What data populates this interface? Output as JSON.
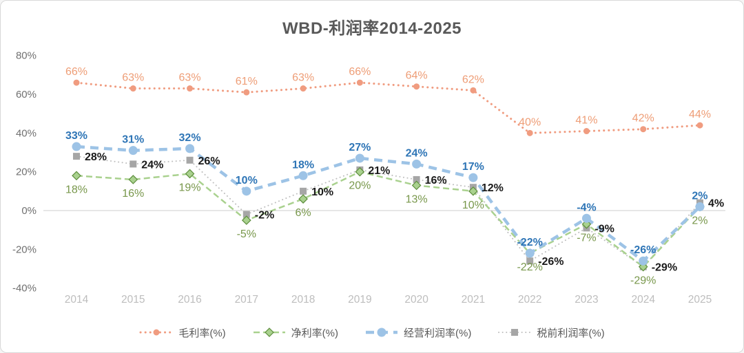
{
  "window": {
    "background": "#ffffff",
    "border_color": "#d8d8d8"
  },
  "chart_data": {
    "type": "line",
    "title": "WBD-利润率2014-2025",
    "title_color": "#595959",
    "categories": [
      "2014",
      "2015",
      "2016",
      "2017",
      "2018",
      "2019",
      "2020",
      "2021",
      "2022",
      "2023",
      "2024",
      "2025"
    ],
    "series": [
      {
        "id": "gross-margin",
        "name": "毛利率(%)",
        "values": [
          66,
          63,
          63,
          61,
          63,
          66,
          64,
          62,
          40,
          41,
          42,
          44
        ],
        "color": "#F09C80",
        "marker_fill": "#F09C80",
        "label_color": "#EE9D76",
        "marker": "circle",
        "line": "dotted",
        "label_pos": "above",
        "label_weight": 400
      },
      {
        "id": "net-margin",
        "name": "净利率(%)",
        "values": [
          18,
          16,
          19,
          -5,
          6,
          20,
          13,
          10,
          -22,
          -7,
          -29,
          2
        ],
        "color": "#A9D18E",
        "marker_fill": "#A9D18E",
        "marker_stroke": "#5E8E3E",
        "label_color": "#78974B",
        "marker": "diamond",
        "line": "dashed",
        "label_pos": "below",
        "label_weight": 400
      },
      {
        "id": "operating-margin",
        "name": "经营利润率(%)",
        "values": [
          33,
          31,
          32,
          10,
          18,
          27,
          24,
          17,
          -22,
          -4,
          -26,
          2
        ],
        "color": "#9DC3E6",
        "marker_fill": "#9DC3E6",
        "label_color": "#2E75B6",
        "marker": "circle-large",
        "line": "dashed-thick",
        "label_pos": "above",
        "label_weight": 700
      },
      {
        "id": "pretax-margin",
        "name": "税前利润率(%)",
        "values": [
          28,
          24,
          26,
          -2,
          10,
          21,
          16,
          12,
          -26,
          -9,
          -29,
          4
        ],
        "color": "#BFBFBF",
        "marker_fill": "#A6A6A6",
        "label_color": "#1A1A1A",
        "marker": "square",
        "line": "dotted-fine",
        "label_pos": "right",
        "label_weight": 700
      }
    ],
    "y_ticks": [
      80,
      60,
      40,
      20,
      0,
      -20,
      -40
    ],
    "ylim": [
      -40,
      80
    ],
    "grid": "zero-line-only",
    "legend_position": "bottom",
    "axis": {
      "y_label_color": "#707070",
      "x_label_color": "#BDBDBD",
      "zero_line_color": "#D6D6D6"
    }
  }
}
